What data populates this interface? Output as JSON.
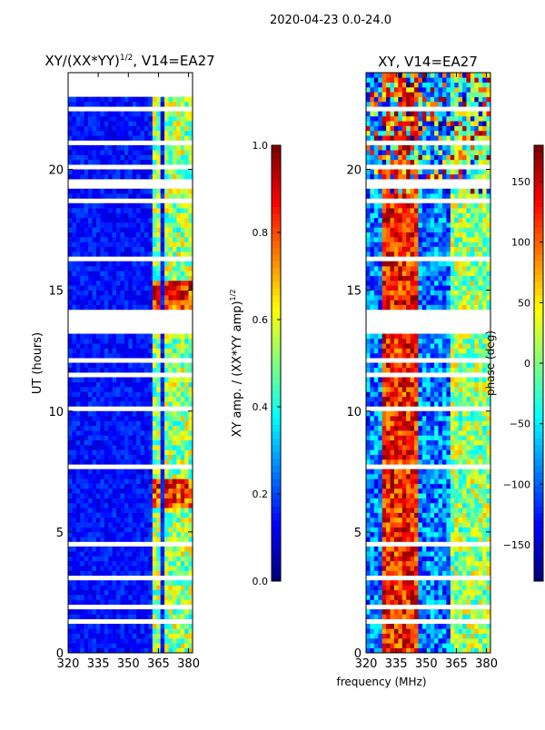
{
  "figure_title": "2020-04-23 0.0-24.0",
  "chart_data": [
    {
      "type": "heatmap",
      "title": "XY/(XX*YY)",
      "title_superscript": "1/2",
      "title_suffix": ", V14=EA27",
      "xlabel": "",
      "ylabel": "UT (hours)",
      "xlim": [
        320,
        382
      ],
      "ylim": [
        0,
        24
      ],
      "xticks": [
        320,
        335,
        350,
        365,
        380
      ],
      "yticks": [
        0,
        5,
        10,
        15,
        20
      ],
      "colorbar": {
        "label": "XY amp. / (XX*YY amp)",
        "label_superscript": "1/2",
        "range": [
          0.0,
          1.0
        ],
        "ticks": [
          "0.0",
          "0.2",
          "0.4",
          "0.6",
          "0.8",
          "1.0"
        ],
        "colormap": "jet"
      },
      "colormap_stops": [
        "#00007f",
        "#0000ff",
        "#0080ff",
        "#00ffff",
        "#80ff80",
        "#ffff00",
        "#ff8000",
        "#ff0000",
        "#7f0000"
      ],
      "flagged_time_ranges_hours": [
        [
          22.95,
          24.0
        ],
        [
          19.95,
          20.25
        ],
        [
          19.2,
          19.55
        ],
        [
          13.2,
          13.9
        ],
        [
          4.4,
          4.6
        ],
        [
          7.55,
          7.75
        ],
        [
          3.1,
          3.25
        ],
        [
          1.8,
          1.95
        ],
        [
          1.15,
          1.3
        ],
        [
          8.0,
          8.05
        ],
        [
          10.0,
          10.1
        ],
        [
          18.7,
          18.85
        ],
        [
          16.2,
          16.3
        ],
        [
          12.1,
          12.2
        ],
        [
          11.5,
          11.55
        ],
        [
          5.95,
          6.05
        ],
        [
          2.55,
          2.6
        ],
        [
          0.75,
          0.8
        ],
        [
          21.1,
          21.15
        ],
        [
          17.2,
          17.25
        ],
        [
          15.55,
          15.6
        ],
        [
          14.1,
          14.15
        ],
        [
          9.2,
          9.25
        ],
        [
          8.6,
          8.65
        ],
        [
          22.0,
          22.05
        ],
        [
          22.5,
          22.55
        ]
      ],
      "bright_channel_bands_mhz": [
        [
          363,
          366
        ],
        [
          368,
          371
        ],
        [
          373,
          376
        ],
        [
          377,
          379
        ],
        [
          380,
          381
        ]
      ]
    },
    {
      "type": "heatmap",
      "title": "XY, V14=EA27",
      "xlabel": "frequency (MHz)",
      "ylabel": "",
      "xlim": [
        320,
        382
      ],
      "ylim": [
        0,
        24
      ],
      "xticks": [
        320,
        335,
        350,
        365,
        380
      ],
      "yticks": [
        0,
        5,
        10,
        15,
        20
      ],
      "colorbar": {
        "label": "phase (deg)",
        "range": [
          -180,
          180
        ],
        "ticks": [
          "150",
          "100",
          "50",
          "0",
          "−50",
          "−100",
          "−150"
        ],
        "colormap": "jet"
      },
      "flagged_time_ranges_hours": [
        [
          19.95,
          20.25
        ],
        [
          19.2,
          19.55
        ],
        [
          13.2,
          13.9
        ],
        [
          4.4,
          4.6
        ],
        [
          7.55,
          7.75
        ],
        [
          3.1,
          3.25
        ],
        [
          1.8,
          1.95
        ],
        [
          1.15,
          1.3
        ],
        [
          8.0,
          8.05
        ],
        [
          10.0,
          10.1
        ],
        [
          18.7,
          18.85
        ],
        [
          16.2,
          16.3
        ],
        [
          12.1,
          12.2
        ],
        [
          11.5,
          11.55
        ],
        [
          5.95,
          6.05
        ],
        [
          2.55,
          2.6
        ],
        [
          0.75,
          0.8
        ],
        [
          21.1,
          21.15
        ],
        [
          17.2,
          17.25
        ],
        [
          15.55,
          15.6
        ],
        [
          14.1,
          14.15
        ],
        [
          9.2,
          9.25
        ],
        [
          8.6,
          8.65
        ],
        [
          22.0,
          22.05
        ],
        [
          22.5,
          22.55
        ]
      ]
    }
  ]
}
